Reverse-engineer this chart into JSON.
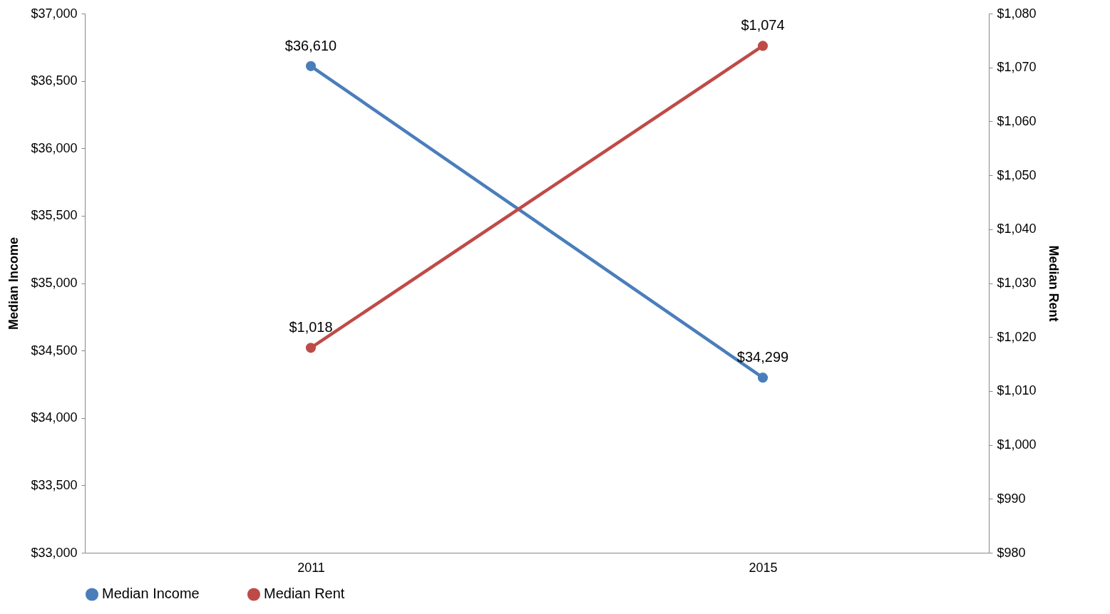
{
  "chart_data": {
    "type": "line",
    "categories": [
      "2011",
      "2015"
    ],
    "ylabel": "Median Income",
    "y2label": "Median Rent",
    "series": [
      {
        "name": "Median Income",
        "color": "#4a7ebb",
        "values": [
          36610,
          34299
        ],
        "value_labels": [
          "$36,610",
          "$34,299"
        ]
      },
      {
        "name": "Median Rent",
        "color": "#be4b48",
        "values": [
          1018,
          1074
        ],
        "axis": "y2",
        "value_labels": [
          "$1,018",
          "$1,074"
        ]
      }
    ],
    "ylim": [
      33000,
      37000
    ],
    "yticks": [
      {
        "value": 33000,
        "label": "$33,000"
      },
      {
        "value": 33500,
        "label": "$33,500"
      },
      {
        "value": 34000,
        "label": "$34,000"
      },
      {
        "value": 34500,
        "label": "$34,500"
      },
      {
        "value": 35000,
        "label": "$35,000"
      },
      {
        "value": 35500,
        "label": "$35,500"
      },
      {
        "value": 36000,
        "label": "$36,000"
      },
      {
        "value": 36500,
        "label": "$36,500"
      },
      {
        "value": 37000,
        "label": "$37,000"
      }
    ],
    "y2lim": [
      980,
      1080
    ],
    "y2ticks": [
      {
        "value": 980,
        "label": "$980"
      },
      {
        "value": 990,
        "label": "$990"
      },
      {
        "value": 1000,
        "label": "$1,000"
      },
      {
        "value": 1010,
        "label": "$1,010"
      },
      {
        "value": 1020,
        "label": "$1,020"
      },
      {
        "value": 1030,
        "label": "$1,030"
      },
      {
        "value": 1040,
        "label": "$1,040"
      },
      {
        "value": 1050,
        "label": "$1,050"
      },
      {
        "value": 1060,
        "label": "$1,060"
      },
      {
        "value": 1070,
        "label": "$1,070"
      },
      {
        "value": 1080,
        "label": "$1,080"
      }
    ],
    "legend": "bottom",
    "marker": "circle",
    "line_style": "solid",
    "grid": false
  }
}
